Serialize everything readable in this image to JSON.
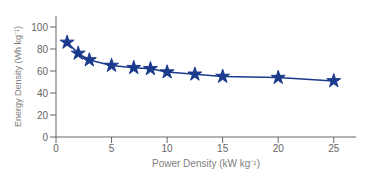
{
  "chart_data": {
    "type": "line",
    "xlabel": "Power Density (kW kg⁻¹)",
    "ylabel": "Energy Density (Wh kg⁻¹)",
    "x": [
      1.0,
      2.0,
      3.0,
      5.0,
      7.0,
      8.5,
      10.0,
      12.5,
      15.0,
      20.0,
      25.0
    ],
    "values": [
      86,
      76,
      70,
      65,
      63,
      62,
      59,
      57,
      55,
      54,
      51
    ],
    "color": "#1a3a8c",
    "marker": "star",
    "xlim": [
      0,
      27
    ],
    "ylim": [
      0,
      110
    ],
    "xticks": [
      0,
      5,
      10,
      15,
      20,
      25
    ],
    "yticks": [
      0,
      20,
      40,
      60,
      80,
      100
    ],
    "grid": false
  }
}
